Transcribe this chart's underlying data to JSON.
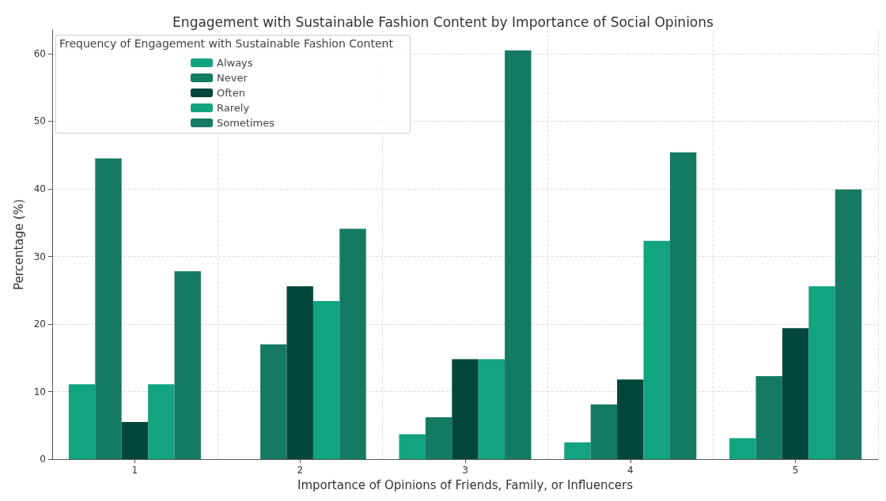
{
  "chart_data": {
    "type": "bar",
    "title": "Engagement with Sustainable Fashion Content by Importance of Social Opinions",
    "xlabel": "Importance of Opinions of Friends, Family, or Influencers",
    "ylabel": "Percentage (%)",
    "legend_title": "Frequency of Engagement with Sustainable Fashion Content",
    "categories": [
      "1",
      "2",
      "3",
      "4",
      "5"
    ],
    "series": [
      {
        "name": "Always",
        "color": "#12a37f",
        "values": [
          11.1,
          0,
          3.7,
          2.5,
          3.1
        ]
      },
      {
        "name": "Never",
        "color": "#157a62",
        "values": [
          44.5,
          17.0,
          6.2,
          8.1,
          12.3
        ]
      },
      {
        "name": "Often",
        "color": "#03473a",
        "values": [
          5.5,
          25.6,
          14.8,
          11.8,
          19.4
        ]
      },
      {
        "name": "Rarely",
        "color": "#12a37f",
        "values": [
          11.1,
          23.4,
          14.8,
          32.3,
          25.6
        ]
      },
      {
        "name": "Sometimes",
        "color": "#157a62",
        "values": [
          27.8,
          34.1,
          60.5,
          45.4,
          39.9
        ]
      }
    ],
    "ylim": [
      0,
      63.5
    ],
    "yticks": [
      0,
      10,
      20,
      30,
      40,
      50,
      60
    ],
    "grid": true,
    "legend": "top left"
  }
}
